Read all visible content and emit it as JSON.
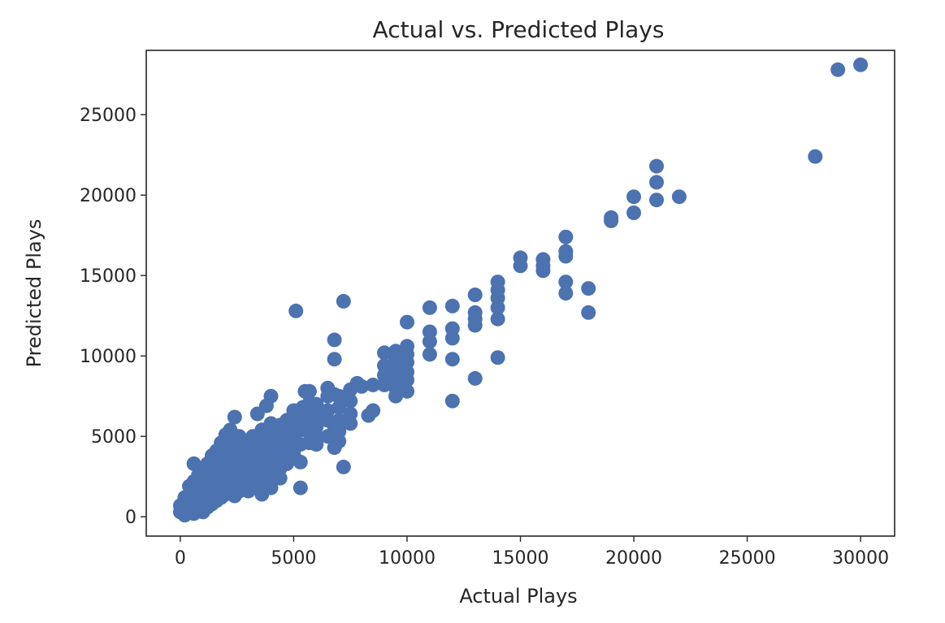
{
  "chart_data": {
    "type": "scatter",
    "title": "Actual vs. Predicted Plays",
    "xlabel": "Actual Plays",
    "ylabel": "Predicted Plays",
    "xlim": [
      -1500,
      31500
    ],
    "ylim": [
      -1200,
      29000
    ],
    "xticks": [
      0,
      5000,
      10000,
      15000,
      20000,
      25000,
      30000
    ],
    "yticks": [
      0,
      5000,
      10000,
      15000,
      20000,
      25000
    ],
    "xtick_labels": [
      "0",
      "5000",
      "10000",
      "15000",
      "20000",
      "25000",
      "30000"
    ],
    "ytick_labels": [
      "0",
      "5000",
      "10000",
      "15000",
      "20000",
      "25000"
    ],
    "grid": false,
    "marker_color": "#4c72b0",
    "points": [
      [
        30000,
        28100
      ],
      [
        29000,
        27800
      ],
      [
        28000,
        22400
      ],
      [
        21000,
        21800
      ],
      [
        21000,
        20800
      ],
      [
        21000,
        19700
      ],
      [
        22000,
        19900
      ],
      [
        20000,
        19900
      ],
      [
        20000,
        18900
      ],
      [
        19000,
        18600
      ],
      [
        19000,
        18400
      ],
      [
        17000,
        17400
      ],
      [
        17000,
        16500
      ],
      [
        17000,
        16200
      ],
      [
        17000,
        14600
      ],
      [
        17000,
        13900
      ],
      [
        18000,
        14200
      ],
      [
        18000,
        12700
      ],
      [
        16000,
        16000
      ],
      [
        16000,
        15600
      ],
      [
        16000,
        15300
      ],
      [
        15000,
        16100
      ],
      [
        15000,
        15600
      ],
      [
        14000,
        14600
      ],
      [
        14000,
        14100
      ],
      [
        14000,
        13600
      ],
      [
        14000,
        13000
      ],
      [
        14000,
        12300
      ],
      [
        14000,
        9900
      ],
      [
        13000,
        13800
      ],
      [
        13000,
        12700
      ],
      [
        13000,
        12300
      ],
      [
        13000,
        11900
      ],
      [
        13000,
        8600
      ],
      [
        12000,
        13100
      ],
      [
        12000,
        11700
      ],
      [
        12000,
        11100
      ],
      [
        12000,
        9800
      ],
      [
        12000,
        7200
      ],
      [
        11000,
        13000
      ],
      [
        11000,
        11500
      ],
      [
        11000,
        10900
      ],
      [
        11000,
        10100
      ],
      [
        10000,
        12100
      ],
      [
        10000,
        10600
      ],
      [
        10000,
        10100
      ],
      [
        10000,
        9600
      ],
      [
        10000,
        9000
      ],
      [
        10000,
        8500
      ],
      [
        10000,
        7800
      ],
      [
        9500,
        10300
      ],
      [
        9500,
        9800
      ],
      [
        9500,
        9200
      ],
      [
        9500,
        8600
      ],
      [
        9500,
        8000
      ],
      [
        9500,
        7500
      ],
      [
        9000,
        10200
      ],
      [
        9000,
        9400
      ],
      [
        9000,
        8800
      ],
      [
        9000,
        8200
      ],
      [
        8500,
        8200
      ],
      [
        8500,
        6600
      ],
      [
        8300,
        6300
      ],
      [
        8000,
        8100
      ],
      [
        7800,
        8300
      ],
      [
        7500,
        7900
      ],
      [
        7500,
        7200
      ],
      [
        7500,
        6400
      ],
      [
        7500,
        5800
      ],
      [
        7200,
        13400
      ],
      [
        7200,
        3100
      ],
      [
        7000,
        7500
      ],
      [
        7000,
        6800
      ],
      [
        7000,
        6000
      ],
      [
        7000,
        5300
      ],
      [
        7000,
        4700
      ],
      [
        6800,
        11000
      ],
      [
        6800,
        9800
      ],
      [
        6800,
        7600
      ],
      [
        6800,
        5600
      ],
      [
        6800,
        5000
      ],
      [
        6800,
        4300
      ],
      [
        6500,
        8000
      ],
      [
        6500,
        7500
      ],
      [
        6500,
        6600
      ],
      [
        6500,
        6000
      ],
      [
        6500,
        5000
      ],
      [
        6000,
        7000
      ],
      [
        6000,
        6300
      ],
      [
        6000,
        5600
      ],
      [
        6000,
        5000
      ],
      [
        6000,
        4500
      ],
      [
        5700,
        7800
      ],
      [
        5700,
        7100
      ],
      [
        5700,
        6400
      ],
      [
        5700,
        5900
      ],
      [
        5700,
        5200
      ],
      [
        5700,
        4600
      ],
      [
        5500,
        7800
      ],
      [
        5400,
        6800
      ],
      [
        5300,
        6100
      ],
      [
        5300,
        5400
      ],
      [
        5300,
        4500
      ],
      [
        5300,
        3400
      ],
      [
        5300,
        1800
      ],
      [
        5100,
        12800
      ],
      [
        5000,
        6600
      ],
      [
        5000,
        5800
      ],
      [
        5000,
        5100
      ],
      [
        5000,
        4500
      ],
      [
        5000,
        3900
      ],
      [
        4700,
        6000
      ],
      [
        4700,
        5300
      ],
      [
        4700,
        4600
      ],
      [
        4700,
        3900
      ],
      [
        4700,
        3300
      ],
      [
        4400,
        5700
      ],
      [
        4400,
        4900
      ],
      [
        4400,
        4300
      ],
      [
        4400,
        3600
      ],
      [
        4400,
        3000
      ],
      [
        4400,
        2400
      ],
      [
        4200,
        5200
      ],
      [
        4200,
        4700
      ],
      [
        4200,
        4000
      ],
      [
        4200,
        3400
      ],
      [
        4200,
        2800
      ],
      [
        4000,
        7500
      ],
      [
        4000,
        5800
      ],
      [
        4000,
        4300
      ],
      [
        4000,
        3700
      ],
      [
        4000,
        3100
      ],
      [
        4000,
        2500
      ],
      [
        4000,
        1800
      ],
      [
        3800,
        6900
      ],
      [
        3800,
        5100
      ],
      [
        3800,
        4500
      ],
      [
        3800,
        3900
      ],
      [
        3800,
        3300
      ],
      [
        3800,
        2700
      ],
      [
        3600,
        5400
      ],
      [
        3600,
        4600
      ],
      [
        3600,
        4000
      ],
      [
        3600,
        3400
      ],
      [
        3600,
        2800
      ],
      [
        3600,
        2200
      ],
      [
        3600,
        1400
      ],
      [
        3400,
        6400
      ],
      [
        3400,
        4400
      ],
      [
        3400,
        3800
      ],
      [
        3400,
        3200
      ],
      [
        3400,
        2600
      ],
      [
        3400,
        2000
      ],
      [
        3200,
        5000
      ],
      [
        3200,
        4200
      ],
      [
        3200,
        3600
      ],
      [
        3200,
        3000
      ],
      [
        3200,
        2400
      ],
      [
        3200,
        1800
      ],
      [
        3000,
        4600
      ],
      [
        3000,
        3900
      ],
      [
        3000,
        3300
      ],
      [
        3000,
        2700
      ],
      [
        3000,
        2100
      ],
      [
        3000,
        1600
      ],
      [
        2800,
        4300
      ],
      [
        2800,
        3600
      ],
      [
        2800,
        3000
      ],
      [
        2800,
        2400
      ],
      [
        2800,
        1900
      ],
      [
        2600,
        5000
      ],
      [
        2600,
        4000
      ],
      [
        2600,
        3400
      ],
      [
        2600,
        2800
      ],
      [
        2600,
        2200
      ],
      [
        2600,
        1600
      ],
      [
        2400,
        6200
      ],
      [
        2400,
        4600
      ],
      [
        2400,
        3700
      ],
      [
        2400,
        3100
      ],
      [
        2400,
        2500
      ],
      [
        2400,
        1900
      ],
      [
        2400,
        1300
      ],
      [
        2200,
        5400
      ],
      [
        2200,
        4300
      ],
      [
        2200,
        3500
      ],
      [
        2200,
        2900
      ],
      [
        2200,
        2300
      ],
      [
        2200,
        1700
      ],
      [
        2000,
        5100
      ],
      [
        2000,
        4000
      ],
      [
        2000,
        3200
      ],
      [
        2000,
        2600
      ],
      [
        2000,
        2000
      ],
      [
        2000,
        1400
      ],
      [
        1800,
        4600
      ],
      [
        1800,
        3600
      ],
      [
        1800,
        3000
      ],
      [
        1800,
        2400
      ],
      [
        1800,
        1800
      ],
      [
        1800,
        1200
      ],
      [
        1600,
        4100
      ],
      [
        1600,
        3300
      ],
      [
        1600,
        2700
      ],
      [
        1600,
        2100
      ],
      [
        1600,
        1500
      ],
      [
        1600,
        1000
      ],
      [
        1400,
        3800
      ],
      [
        1400,
        3000
      ],
      [
        1400,
        2400
      ],
      [
        1400,
        1800
      ],
      [
        1400,
        1200
      ],
      [
        1400,
        800
      ],
      [
        1200,
        3300
      ],
      [
        1200,
        2700
      ],
      [
        1200,
        2100
      ],
      [
        1200,
        1500
      ],
      [
        1200,
        1000
      ],
      [
        1200,
        600
      ],
      [
        1000,
        2900
      ],
      [
        1000,
        2300
      ],
      [
        1000,
        1700
      ],
      [
        1000,
        1200
      ],
      [
        1000,
        700
      ],
      [
        1000,
        300
      ],
      [
        800,
        2600
      ],
      [
        800,
        2000
      ],
      [
        800,
        1400
      ],
      [
        800,
        900
      ],
      [
        800,
        500
      ],
      [
        600,
        3300
      ],
      [
        600,
        2200
      ],
      [
        600,
        1600
      ],
      [
        600,
        1100
      ],
      [
        600,
        600
      ],
      [
        600,
        200
      ],
      [
        400,
        1900
      ],
      [
        400,
        1300
      ],
      [
        400,
        800
      ],
      [
        400,
        400
      ],
      [
        200,
        1200
      ],
      [
        200,
        800
      ],
      [
        200,
        400
      ],
      [
        200,
        100
      ],
      [
        0,
        700
      ],
      [
        0,
        300
      ],
      [
        100,
        500
      ]
    ]
  }
}
